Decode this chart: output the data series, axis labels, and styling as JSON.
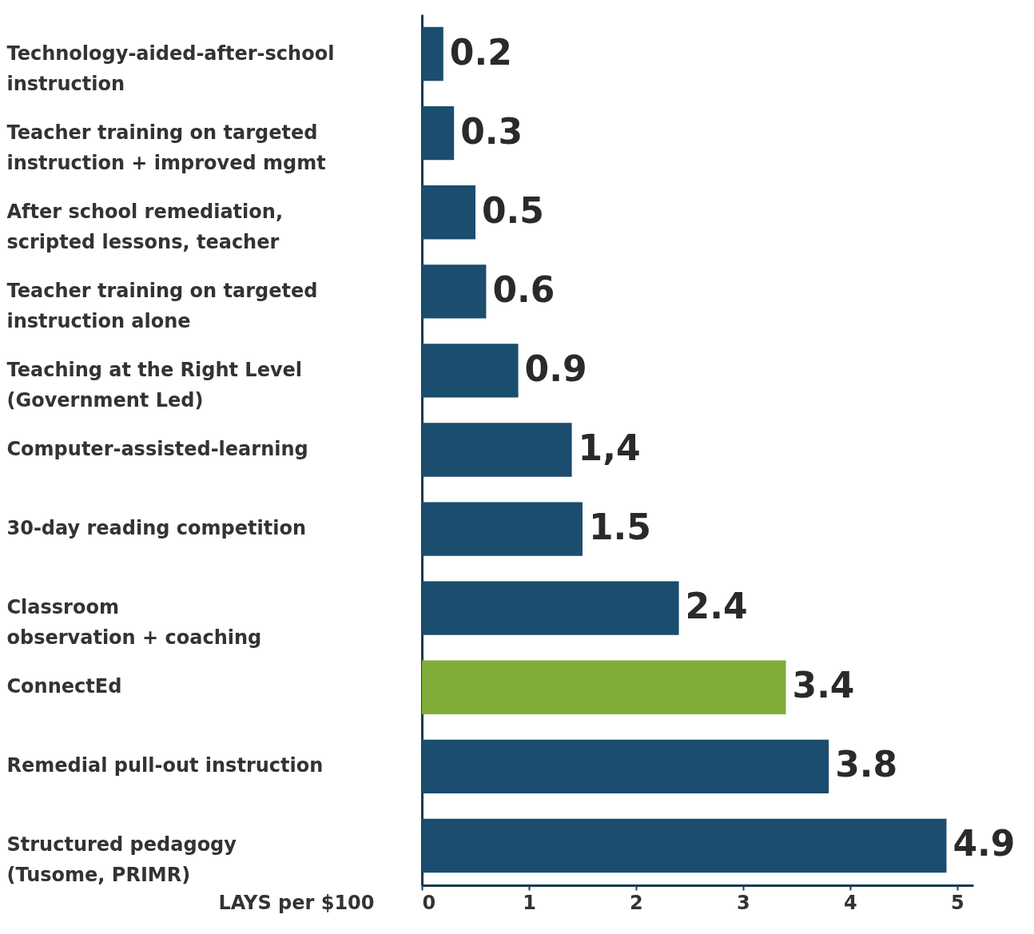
{
  "chart_data": {
    "type": "bar",
    "orientation": "horizontal",
    "xlabel": "LAYS per $100",
    "categories": [
      "Technology-aided-after-school\ninstruction",
      "Teacher training on targeted\ninstruction + improved mgmt",
      "After school remediation,\nscripted lessons, teacher",
      "Teacher training on targeted\ninstruction alone",
      "Teaching at the Right Level\n(Government Led)",
      "Computer-assisted-learning",
      "30-day reading competition",
      "Classroom\nobservation + coaching",
      "ConnectEd",
      "Remedial pull-out instruction",
      "Structured pedagogy\n(Tusome, PRIMR)"
    ],
    "values": [
      0.2,
      0.3,
      0.5,
      0.6,
      0.9,
      1.4,
      1.5,
      2.4,
      3.4,
      3.8,
      4.9
    ],
    "value_labels": [
      "0.2",
      "0.3",
      "0.5",
      "0.6",
      "0.9",
      "1,4",
      "1.5",
      "2.4",
      "3.4",
      "3.8",
      "4.9"
    ],
    "colors": [
      "#1a4d6e",
      "#1a4d6e",
      "#1a4d6e",
      "#1a4d6e",
      "#1a4d6e",
      "#1a4d6e",
      "#1a4d6e",
      "#1a4d6e",
      "#80ad38",
      "#1a4d6e",
      "#1a4d6e"
    ],
    "xlim": [
      0,
      5.15
    ],
    "xticks": [
      0,
      1,
      2,
      3,
      4,
      5
    ],
    "grid": false
  }
}
